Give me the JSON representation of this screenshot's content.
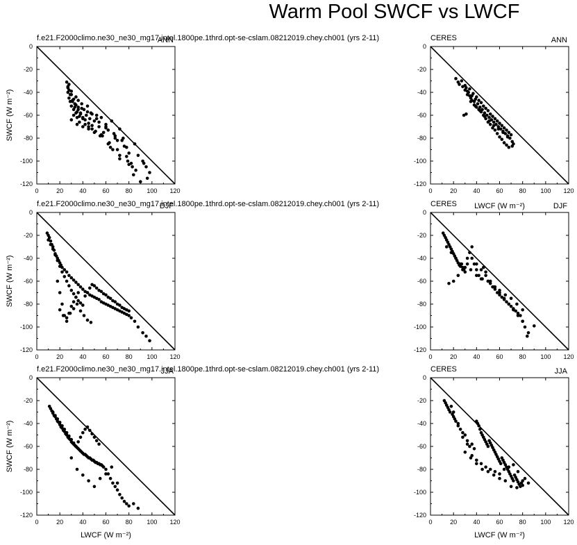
{
  "figure": {
    "title": "Warm Pool SWCF vs LWCF",
    "x_axis_label": "LWCF (W m⁻²)",
    "y_axis_label": "SWCF (W m⁻²)"
  },
  "panels": [
    {
      "id": "model-ann",
      "source": "f.e21.F2000climo.ne30_ne30_mg17.intel.1800pe.1thrd.opt-se-cslam.08212019.chey.ch001 (yrs 2-11)",
      "season": "ANN"
    },
    {
      "id": "model-djf",
      "source": "f.e21.F2000climo.ne30_ne30_mg17.intel.1800pe.1thrd.opt-se-cslam.08212019.chey.ch001 (yrs 2-11)",
      "season": "DJF"
    },
    {
      "id": "model-jja",
      "source": "f.e21.F2000climo.ne30_ne30_mg17.intel.1800pe.1thrd.opt-se-cslam.08212019.chey.ch001 (yrs 2-11)",
      "season": "JJA"
    },
    {
      "id": "obs-ann",
      "source": "CERES",
      "season": "ANN"
    },
    {
      "id": "obs-djf",
      "source": "CERES",
      "season": "DJF"
    },
    {
      "id": "obs-jja",
      "source": "CERES",
      "season": "JJA"
    }
  ],
  "chart_data": [
    {
      "type": "scatter",
      "panel": "model-ann",
      "title": "f.e21.F2000climo.ne30_ne30_mg17.intel.1800pe.1thrd.opt-se-cslam.08212019.chey.ch001 (yrs 2-11)",
      "season": "ANN",
      "xlabel": "",
      "ylabel": "SWCF (W m⁻²)",
      "xlim": [
        0,
        120
      ],
      "ylim": [
        -120,
        0
      ],
      "xticks": [
        0,
        20,
        40,
        60,
        80,
        100,
        120
      ],
      "yticks": [
        0,
        -20,
        -40,
        -60,
        -80,
        -100,
        -120
      ],
      "reference_line": "y = -x",
      "x": [
        26,
        27,
        27,
        28,
        28,
        29,
        30,
        30,
        31,
        32,
        32,
        33,
        34,
        34,
        35,
        36,
        36,
        37,
        38,
        39,
        40,
        41,
        42,
        43,
        44,
        45,
        46,
        47,
        48,
        50,
        52,
        54,
        56,
        58,
        60,
        62,
        65,
        68,
        70,
        72,
        75,
        78,
        80,
        85,
        88,
        92,
        95,
        98,
        27,
        29,
        31,
        33,
        35,
        37,
        39,
        42,
        45,
        48,
        51,
        54,
        57,
        60,
        63,
        67,
        70,
        74,
        78,
        82,
        86,
        28,
        30,
        32,
        34,
        36,
        38,
        40,
        44,
        48,
        52,
        56,
        60,
        64,
        68,
        72,
        76,
        80,
        84,
        90,
        96,
        30,
        35,
        40,
        45,
        50,
        55,
        62,
        66,
        72,
        79,
        83,
        93
      ],
      "y": [
        -31,
        -35,
        -40,
        -38,
        -45,
        -48,
        -42,
        -52,
        -47,
        -55,
        -60,
        -50,
        -44,
        -58,
        -62,
        -47,
        -53,
        -66,
        -58,
        -50,
        -62,
        -55,
        -68,
        -60,
        -52,
        -70,
        -63,
        -58,
        -72,
        -65,
        -60,
        -70,
        -62,
        -75,
        -68,
        -73,
        -65,
        -78,
        -82,
        -72,
        -80,
        -88,
        -93,
        -85,
        -95,
        -100,
        -105,
        -110,
        -36,
        -42,
        -48,
        -53,
        -57,
        -61,
        -54,
        -64,
        -67,
        -59,
        -74,
        -66,
        -78,
        -71,
        -84,
        -76,
        -90,
        -82,
        -96,
        -102,
        -108,
        -33,
        -39,
        -46,
        -51,
        -55,
        -59,
        -63,
        -57,
        -69,
        -63,
        -77,
        -70,
        -88,
        -80,
        -98,
        -87,
        -103,
        -112,
        -118,
        -115,
        -64,
        -68,
        -70,
        -72,
        -75,
        -78,
        -85,
        -90,
        -95,
        -100,
        -105,
        -102
      ]
    },
    {
      "type": "scatter",
      "panel": "model-djf",
      "title": "f.e21.F2000climo.ne30_ne30_mg17.intel.1800pe.1thrd.opt-se-cslam.08212019.chey.ch001 (yrs 2-11)",
      "season": "DJF",
      "xlabel": "",
      "ylabel": "SWCF (W m⁻²)",
      "xlim": [
        0,
        120
      ],
      "ylim": [
        -120,
        0
      ],
      "xticks": [
        0,
        20,
        40,
        60,
        80,
        100,
        120
      ],
      "yticks": [
        0,
        -20,
        -40,
        -60,
        -80,
        -100,
        -120
      ],
      "reference_line": "y = -x",
      "x": [
        9,
        10,
        11,
        12,
        13,
        14,
        15,
        16,
        17,
        18,
        19,
        20,
        21,
        22,
        24,
        26,
        28,
        30,
        32,
        34,
        36,
        38,
        40,
        42,
        44,
        46,
        48,
        50,
        52,
        54,
        56,
        58,
        60,
        62,
        64,
        66,
        68,
        70,
        72,
        74,
        76,
        78,
        80,
        82,
        85,
        88,
        92,
        95,
        98,
        10,
        12,
        14,
        16,
        18,
        20,
        22,
        24,
        26,
        28,
        30,
        32,
        34,
        36,
        38,
        40,
        42,
        44,
        46,
        48,
        50,
        52,
        54,
        56,
        58,
        60,
        62,
        64,
        66,
        68,
        70,
        72,
        74,
        76,
        78,
        80,
        18,
        20,
        22,
        24,
        26,
        28,
        30,
        32,
        34,
        36,
        20,
        23,
        26,
        29,
        32,
        35,
        38,
        41,
        44,
        47
      ],
      "y": [
        -18,
        -20,
        -22,
        -25,
        -28,
        -30,
        -33,
        -36,
        -38,
        -40,
        -42,
        -44,
        -46,
        -48,
        -50,
        -52,
        -55,
        -57,
        -59,
        -61,
        -63,
        -65,
        -67,
        -69,
        -70,
        -72,
        -73,
        -74,
        -75,
        -76,
        -78,
        -79,
        -80,
        -81,
        -82,
        -83,
        -84,
        -85,
        -86,
        -87,
        -88,
        -89,
        -90,
        -92,
        -95,
        -100,
        -105,
        -108,
        -112,
        -24,
        -28,
        -32,
        -37,
        -42,
        -47,
        -52,
        -56,
        -60,
        -64,
        -68,
        -71,
        -74,
        -77,
        -79,
        -81,
        -73,
        -70,
        -66,
        -63,
        -64,
        -66,
        -68,
        -69,
        -71,
        -72,
        -74,
        -75,
        -77,
        -78,
        -80,
        -81,
        -83,
        -84,
        -85,
        -86,
        -60,
        -70,
        -80,
        -90,
        -95,
        -88,
        -82,
        -78,
        -74,
        -70,
        -85,
        -90,
        -92,
        -88,
        -84,
        -80,
        -86,
        -90,
        -94,
        -96
      ]
    },
    {
      "type": "scatter",
      "panel": "model-jja",
      "title": "f.e21.F2000climo.ne30_ne30_mg17.intel.1800pe.1thrd.opt-se-cslam.08212019.chey.ch001 (yrs 2-11)",
      "season": "JJA",
      "xlabel": "LWCF (W m⁻²)",
      "ylabel": "SWCF (W m⁻²)",
      "xlim": [
        0,
        120
      ],
      "ylim": [
        -120,
        0
      ],
      "xticks": [
        0,
        20,
        40,
        60,
        80,
        100,
        120
      ],
      "yticks": [
        0,
        -20,
        -40,
        -60,
        -80,
        -100,
        -120
      ],
      "reference_line": "y = -x",
      "x": [
        11,
        12,
        13,
        14,
        15,
        16,
        17,
        18,
        19,
        20,
        21,
        22,
        23,
        24,
        25,
        26,
        27,
        28,
        29,
        30,
        31,
        32,
        33,
        34,
        35,
        36,
        37,
        38,
        39,
        40,
        41,
        42,
        43,
        44,
        45,
        46,
        47,
        48,
        49,
        50,
        51,
        52,
        53,
        54,
        55,
        56,
        57,
        58,
        60,
        62,
        64,
        66,
        68,
        70,
        72,
        74,
        76,
        78,
        80,
        84,
        88,
        14,
        16,
        18,
        20,
        22,
        24,
        26,
        28,
        30,
        32,
        34,
        36,
        38,
        40,
        42,
        44,
        46,
        48,
        50,
        52,
        54,
        30,
        35,
        40,
        45,
        50,
        55,
        60,
        65,
        70
      ],
      "y": [
        -25,
        -27,
        -29,
        -31,
        -33,
        -34,
        -36,
        -38,
        -39,
        -41,
        -43,
        -44,
        -46,
        -47,
        -49,
        -50,
        -52,
        -53,
        -54,
        -56,
        -57,
        -58,
        -59,
        -60,
        -61,
        -62,
        -63,
        -64,
        -65,
        -66,
        -67,
        -67,
        -68,
        -69,
        -70,
        -70,
        -71,
        -72,
        -72,
        -73,
        -74,
        -74,
        -75,
        -75,
        -76,
        -76,
        -77,
        -78,
        -80,
        -84,
        -88,
        -92,
        -95,
        -98,
        -102,
        -105,
        -108,
        -110,
        -112,
        -110,
        -114,
        -30,
        -33,
        -36,
        -39,
        -42,
        -45,
        -48,
        -51,
        -54,
        -57,
        -60,
        -56,
        -52,
        -48,
        -45,
        -43,
        -46,
        -49,
        -52,
        -55,
        -58,
        -70,
        -80,
        -85,
        -90,
        -95,
        -88,
        -84,
        -78,
        -92
      ]
    },
    {
      "type": "scatter",
      "panel": "obs-ann",
      "title": "CERES",
      "season": "ANN",
      "xlabel": "",
      "ylabel": "",
      "xlim": [
        0,
        120
      ],
      "ylim": [
        -120,
        0
      ],
      "xticks": [
        0,
        20,
        40,
        60,
        80,
        100,
        120
      ],
      "yticks": [
        0,
        -20,
        -40,
        -60,
        -80,
        -100,
        -120
      ],
      "reference_line": "y = -x",
      "x": [
        22,
        24,
        25,
        27,
        28,
        30,
        31,
        32,
        33,
        34,
        35,
        36,
        37,
        38,
        39,
        40,
        41,
        42,
        43,
        44,
        45,
        46,
        47,
        48,
        49,
        50,
        51,
        52,
        53,
        54,
        55,
        56,
        57,
        58,
        59,
        60,
        61,
        62,
        63,
        64,
        65,
        66,
        67,
        68,
        69,
        70,
        71,
        72,
        30,
        32,
        34,
        36,
        38,
        40,
        42,
        44,
        46,
        48,
        50,
        52,
        54,
        56,
        58,
        60,
        62,
        64,
        66,
        68,
        29,
        31,
        35,
        39,
        43,
        47,
        51,
        55,
        59,
        63,
        67,
        71
      ],
      "y": [
        -28,
        -31,
        -33,
        -30,
        -35,
        -38,
        -36,
        -42,
        -40,
        -37,
        -45,
        -43,
        -41,
        -48,
        -46,
        -44,
        -50,
        -47,
        -53,
        -49,
        -55,
        -52,
        -58,
        -54,
        -60,
        -56,
        -62,
        -59,
        -64,
        -61,
        -66,
        -63,
        -68,
        -65,
        -70,
        -67,
        -72,
        -69,
        -74,
        -71,
        -76,
        -73,
        -78,
        -75,
        -80,
        -77,
        -83,
        -85,
        -34,
        -39,
        -43,
        -47,
        -51,
        -53,
        -55,
        -57,
        -60,
        -63,
        -66,
        -68,
        -71,
        -73,
        -76,
        -79,
        -81,
        -84,
        -86,
        -88,
        -60,
        -59,
        -48,
        -52,
        -56,
        -61,
        -65,
        -69,
        -72,
        -75,
        -79,
        -87
      ]
    },
    {
      "type": "scatter",
      "panel": "obs-djf",
      "title": "CERES",
      "season": "DJF",
      "xlabel": "LWCF (W m⁻²)",
      "ylabel": "",
      "xlim": [
        0,
        120
      ],
      "ylim": [
        -120,
        0
      ],
      "xticks": [
        0,
        20,
        40,
        60,
        80,
        100,
        120
      ],
      "yticks": [
        0,
        -20,
        -40,
        -60,
        -80,
        -100,
        -120
      ],
      "reference_line": "y = -x",
      "x": [
        11,
        12,
        13,
        14,
        15,
        16,
        17,
        18,
        19,
        20,
        21,
        22,
        23,
        24,
        25,
        26,
        27,
        28,
        29,
        30,
        32,
        34,
        36,
        38,
        40,
        42,
        44,
        46,
        48,
        50,
        52,
        54,
        56,
        58,
        60,
        62,
        64,
        66,
        68,
        70,
        72,
        74,
        76,
        78,
        80,
        82,
        85,
        90,
        14,
        18,
        22,
        26,
        30,
        35,
        40,
        45,
        50,
        55,
        60,
        65,
        70,
        75,
        80,
        16,
        20,
        24,
        28,
        32,
        36,
        40,
        44,
        48,
        52,
        56,
        60,
        64,
        68,
        72,
        76,
        80,
        84
      ],
      "y": [
        -18,
        -20,
        -22,
        -24,
        -26,
        -28,
        -30,
        -32,
        -34,
        -36,
        -38,
        -40,
        -42,
        -44,
        -46,
        -47,
        -45,
        -48,
        -50,
        -52,
        -40,
        -35,
        -30,
        -45,
        -50,
        -55,
        -58,
        -48,
        -52,
        -60,
        -62,
        -65,
        -67,
        -70,
        -72,
        -74,
        -76,
        -78,
        -80,
        -82,
        -84,
        -86,
        -88,
        -90,
        -95,
        -100,
        -105,
        -99,
        -30,
        -35,
        -40,
        -45,
        -48,
        -50,
        -55,
        -58,
        -60,
        -65,
        -68,
        -72,
        -75,
        -80,
        -85,
        -62,
        -60,
        -55,
        -50,
        -45,
        -40,
        -45,
        -50,
        -55,
        -60,
        -65,
        -70,
        -75,
        -80,
        -85,
        -90,
        -95,
        -108
      ]
    },
    {
      "type": "scatter",
      "panel": "obs-jja",
      "title": "CERES",
      "season": "JJA",
      "xlabel": "LWCF (W m⁻²)",
      "ylabel": "",
      "xlim": [
        0,
        120
      ],
      "ylim": [
        -120,
        0
      ],
      "xticks": [
        0,
        20,
        40,
        60,
        80,
        100,
        120
      ],
      "yticks": [
        0,
        -20,
        -40,
        -60,
        -80,
        -100,
        -120
      ],
      "reference_line": "y = -x",
      "x": [
        12,
        13,
        14,
        15,
        16,
        17,
        18,
        19,
        20,
        21,
        22,
        24,
        26,
        28,
        30,
        32,
        34,
        36,
        38,
        40,
        41,
        42,
        43,
        44,
        45,
        46,
        47,
        48,
        49,
        50,
        51,
        52,
        53,
        54,
        55,
        56,
        57,
        58,
        59,
        60,
        61,
        62,
        63,
        64,
        65,
        66,
        67,
        68,
        69,
        70,
        71,
        72,
        73,
        74,
        75,
        76,
        77,
        78,
        79,
        80,
        82,
        85,
        20,
        24,
        28,
        32,
        36,
        40,
        44,
        48,
        52,
        56,
        60,
        64,
        68,
        72,
        76,
        80,
        30,
        35,
        40,
        45,
        50,
        55,
        60,
        65,
        70,
        75
      ],
      "y": [
        -20,
        -22,
        -24,
        -26,
        -28,
        -30,
        -25,
        -32,
        -34,
        -36,
        -38,
        -40,
        -45,
        -48,
        -50,
        -55,
        -60,
        -58,
        -62,
        -38,
        -40,
        -42,
        -45,
        -48,
        -50,
        -52,
        -54,
        -56,
        -58,
        -60,
        -55,
        -57,
        -59,
        -61,
        -63,
        -65,
        -67,
        -69,
        -71,
        -73,
        -75,
        -70,
        -72,
        -74,
        -76,
        -78,
        -80,
        -82,
        -84,
        -86,
        -88,
        -90,
        -85,
        -87,
        -89,
        -91,
        -93,
        -95,
        -92,
        -94,
        -88,
        -92,
        -30,
        -42,
        -52,
        -58,
        -68,
        -72,
        -75,
        -78,
        -80,
        -82,
        -84,
        -80,
        -78,
        -76,
        -82,
        -90,
        -65,
        -70,
        -75,
        -80,
        -82,
        -85,
        -88,
        -90,
        -95,
        -96
      ]
    }
  ]
}
